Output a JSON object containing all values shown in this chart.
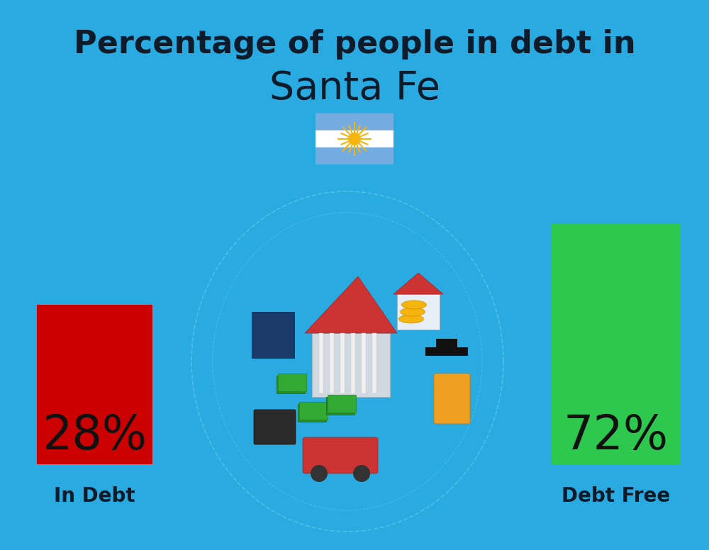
{
  "title_line1": "Percentage of people in debt in",
  "title_line2": "Santa Fe",
  "background_color": "#29ABE2",
  "bar1_label": "28%",
  "bar1_color": "#CC0000",
  "bar1_text": "In Debt",
  "bar2_label": "72%",
  "bar2_color": "#2DC84D",
  "bar2_text": "Debt Free",
  "title_fontsize": 32,
  "subtitle_fontsize": 40,
  "bar_pct_fontsize": 48,
  "bar_label_fontsize": 20,
  "title_color": "#0d1b2a",
  "label_color": "#0d1b2a",
  "pct_color": "#111111",
  "flag_stripe_top": "#74ACDF",
  "flag_stripe_mid": "#FFFFFF",
  "flag_stripe_bot": "#74ACDF",
  "flag_sun": "#F6B40E",
  "circle_outline_color": "#5EC8E8",
  "illus_bg": "#29ABE2"
}
